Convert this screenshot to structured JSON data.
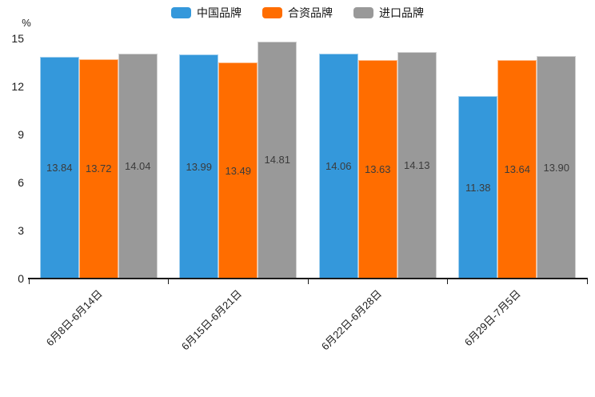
{
  "chart_data": {
    "type": "bar",
    "title": "",
    "categories": [
      "6月8日-6月14日",
      "6月15日-6月21日",
      "6月22日-6月28日",
      "6月29日-7月5日"
    ],
    "series": [
      {
        "name": "中国品牌",
        "slug": "china-brand",
        "color": "#3498db",
        "values": [
          13.84,
          13.99,
          14.06,
          11.38
        ]
      },
      {
        "name": "合资品牌",
        "slug": "joint-venture-brand",
        "color": "#ff6d00",
        "values": [
          13.72,
          13.49,
          13.63,
          13.64
        ]
      },
      {
        "name": "进口品牌",
        "slug": "import-brand",
        "color": "#999999",
        "values": [
          14.04,
          14.81,
          14.13,
          13.9
        ]
      }
    ],
    "xlabel": "",
    "ylabel": "%",
    "ylim": [
      0,
      15
    ],
    "yticks": [
      0,
      3,
      6,
      9,
      12,
      15
    ],
    "grid": false,
    "legend_position": "top",
    "value_labels": "inside-center",
    "value_label_format": "2-decimals"
  }
}
